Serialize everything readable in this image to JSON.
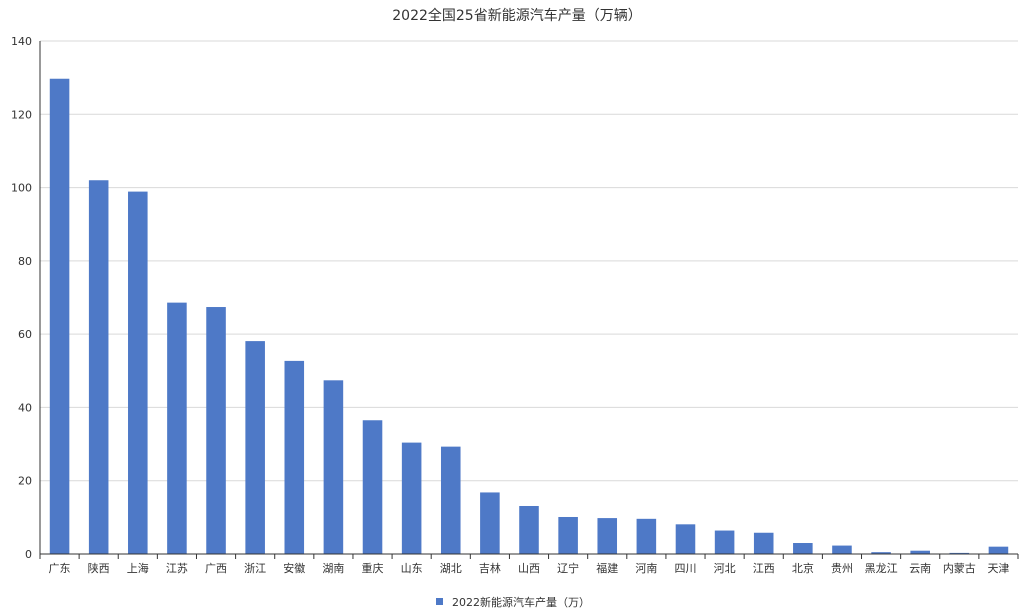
{
  "chart_data": {
    "type": "bar",
    "title": "2022全国25省新能源汽车产量（万辆）",
    "categories": [
      "广东",
      "陕西",
      "上海",
      "江苏",
      "广西",
      "浙江",
      "安徽",
      "湖南",
      "重庆",
      "山东",
      "湖北",
      "吉林",
      "山西",
      "辽宁",
      "福建",
      "河南",
      "四川",
      "河北",
      "江西",
      "北京",
      "贵州",
      "黑龙江",
      "云南",
      "内蒙古",
      "天津"
    ],
    "series": [
      {
        "name": "2022新能源汽车产量（万）",
        "color": "#4e79c7",
        "values": [
          129.7,
          102.0,
          98.9,
          68.6,
          67.4,
          58.1,
          52.7,
          47.4,
          36.5,
          30.4,
          29.3,
          16.8,
          13.1,
          10.1,
          9.8,
          9.6,
          8.1,
          6.4,
          5.8,
          3.0,
          2.3,
          0.5,
          0.9,
          0.3,
          2.0
        ]
      }
    ],
    "ylim": [
      0,
      140
    ],
    "yticks": [
      0,
      20,
      40,
      60,
      80,
      100,
      120,
      140
    ],
    "grid": true,
    "legend_position": "bottom-center"
  }
}
